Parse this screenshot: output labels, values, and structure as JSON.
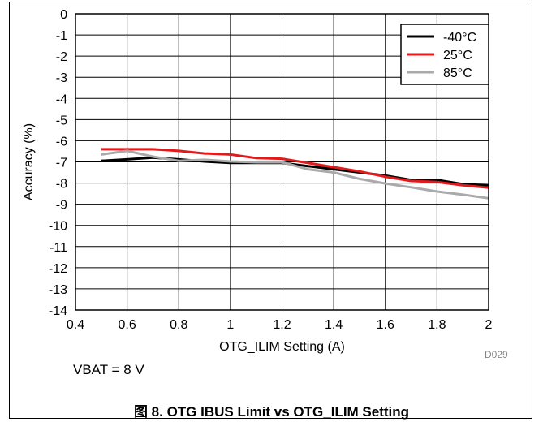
{
  "chart_data": {
    "type": "line",
    "xlabel": "OTG_ILIM Setting (A)",
    "ylabel": "Accuracy (%)",
    "xlim": [
      0.4,
      2
    ],
    "ylim": [
      -14,
      0
    ],
    "x_ticks": [
      "0.4",
      "0.6",
      "0.8",
      "1",
      "1.2",
      "1.4",
      "1.6",
      "1.8",
      "2"
    ],
    "y_ticks": [
      "0",
      "-1",
      "-2",
      "-3",
      "-4",
      "-5",
      "-6",
      "-7",
      "-8",
      "-9",
      "-10",
      "-11",
      "-12",
      "-13",
      "-14"
    ],
    "grid": true,
    "legend_position": "top-right",
    "series": [
      {
        "name": "-40°C",
        "color": "#000000",
        "x": [
          0.5,
          0.6,
          0.7,
          0.8,
          0.9,
          1.0,
          1.1,
          1.2,
          1.3,
          1.4,
          1.5,
          1.6,
          1.7,
          1.8,
          1.9,
          2.0
        ],
        "y": [
          -6.95,
          -6.88,
          -6.8,
          -6.88,
          -6.98,
          -7.05,
          -7.05,
          -7.05,
          -7.2,
          -7.35,
          -7.5,
          -7.65,
          -7.85,
          -7.85,
          -8.05,
          -8.1
        ]
      },
      {
        "name": "25°C",
        "color": "#e31a1c",
        "x": [
          0.5,
          0.6,
          0.7,
          0.8,
          0.9,
          1.0,
          1.1,
          1.2,
          1.3,
          1.4,
          1.5,
          1.6,
          1.7,
          1.8,
          1.9,
          2.0
        ],
        "y": [
          -6.4,
          -6.4,
          -6.4,
          -6.48,
          -6.6,
          -6.65,
          -6.82,
          -6.85,
          -7.05,
          -7.25,
          -7.45,
          -7.7,
          -7.9,
          -7.95,
          -8.1,
          -8.22
        ]
      },
      {
        "name": "85°C",
        "color": "#aaaaaa",
        "x": [
          0.5,
          0.6,
          0.7,
          0.8,
          0.9,
          1.0,
          1.1,
          1.2,
          1.3,
          1.4,
          1.5,
          1.6,
          1.7,
          1.8,
          1.9,
          2.0
        ],
        "y": [
          -6.65,
          -6.48,
          -6.75,
          -6.95,
          -6.9,
          -6.98,
          -7.02,
          -7.02,
          -7.35,
          -7.5,
          -7.8,
          -8.02,
          -8.2,
          -8.4,
          -8.55,
          -8.72
        ]
      }
    ]
  },
  "note": "VBAT = 8 V",
  "code": "D029",
  "caption": "图 8. OTG IBUS Limit vs OTG_ILIM Setting"
}
